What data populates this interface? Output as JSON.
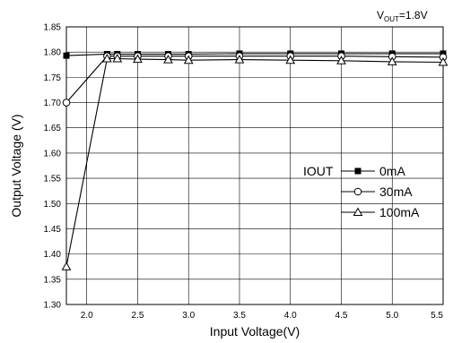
{
  "chart_data": {
    "type": "line",
    "title": "",
    "condition": {
      "prefix": "V",
      "subscript": "OUT",
      "suffix": "=1.8V"
    },
    "xlabel": "Input Voltage(V)",
    "ylabel": "Output Voltage (V)",
    "xlim": [
      1.8,
      5.5
    ],
    "ylim": [
      1.3,
      1.85
    ],
    "xticks": [
      2.0,
      2.5,
      3.0,
      3.5,
      4.0,
      4.5,
      5.0,
      5.5
    ],
    "xtick_labels": [
      "2.0",
      "2.5",
      "3.0",
      "3.5",
      "4.0",
      "4.5",
      "5.0",
      "5.5"
    ],
    "yticks": [
      1.3,
      1.35,
      1.4,
      1.45,
      1.5,
      1.55,
      1.6,
      1.65,
      1.7,
      1.75,
      1.8,
      1.85
    ],
    "ytick_labels": [
      "1.30",
      "1.35",
      "1.40",
      "1.45",
      "1.50",
      "1.55",
      "1.60",
      "1.65",
      "1.70",
      "1.75",
      "1.80",
      "1.85"
    ],
    "grid": true,
    "legend": {
      "title": "IOUT",
      "placement": "center-right"
    },
    "series": [
      {
        "name": "0mA",
        "marker": "filled-square",
        "points": [
          [
            1.8,
            1.793
          ],
          [
            2.2,
            1.796
          ],
          [
            2.3,
            1.796
          ],
          [
            2.5,
            1.796
          ],
          [
            2.8,
            1.796
          ],
          [
            3.0,
            1.796
          ],
          [
            3.5,
            1.797
          ],
          [
            4.0,
            1.797
          ],
          [
            4.5,
            1.797
          ],
          [
            5.0,
            1.797
          ],
          [
            5.5,
            1.797
          ]
        ]
      },
      {
        "name": "30mA",
        "marker": "open-circle",
        "points": [
          [
            1.8,
            1.7
          ],
          [
            2.2,
            1.792
          ],
          [
            2.3,
            1.792
          ],
          [
            2.5,
            1.792
          ],
          [
            2.8,
            1.792
          ],
          [
            3.0,
            1.792
          ],
          [
            3.5,
            1.792
          ],
          [
            4.0,
            1.792
          ],
          [
            4.5,
            1.792
          ],
          [
            5.0,
            1.791
          ],
          [
            5.5,
            1.79
          ]
        ]
      },
      {
        "name": "100mA",
        "marker": "open-triangle",
        "points": [
          [
            1.8,
            1.375
          ],
          [
            2.2,
            1.787
          ],
          [
            2.3,
            1.787
          ],
          [
            2.5,
            1.786
          ],
          [
            2.8,
            1.785
          ],
          [
            3.0,
            1.784
          ],
          [
            3.5,
            1.785
          ],
          [
            4.0,
            1.784
          ],
          [
            4.5,
            1.783
          ],
          [
            5.0,
            1.781
          ],
          [
            5.5,
            1.78
          ]
        ]
      }
    ]
  }
}
